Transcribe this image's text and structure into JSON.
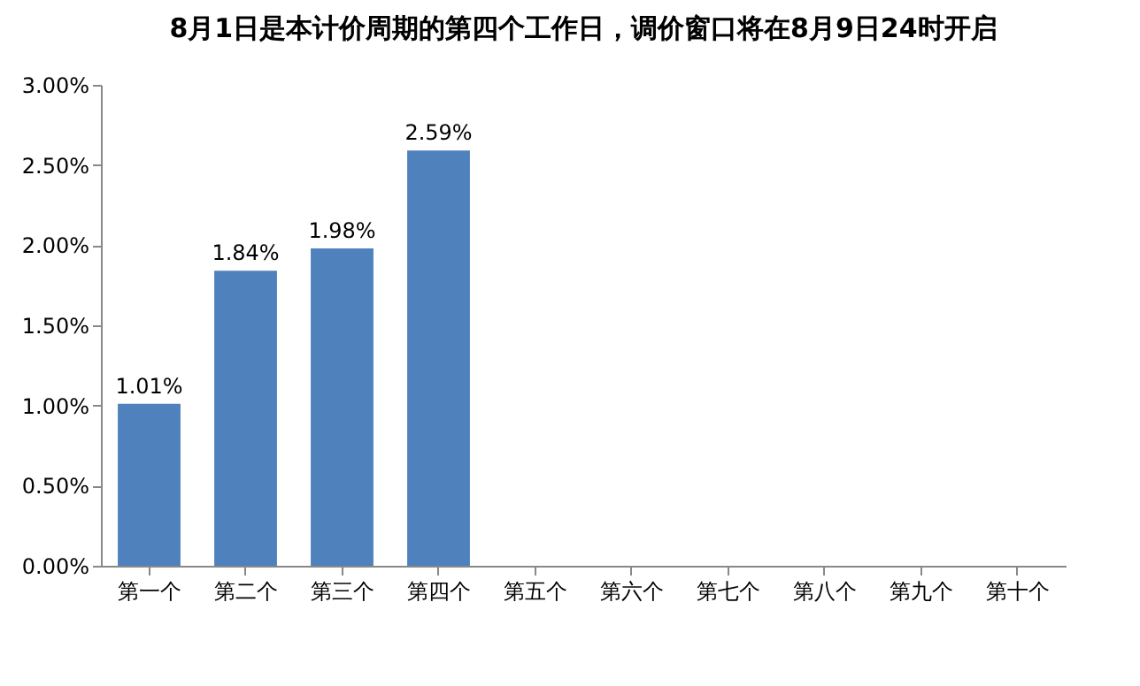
{
  "chart_data": {
    "type": "bar",
    "title": "8月1日是本计价周期的第四个工作日，调价窗口将在8月9日24时开启",
    "categories": [
      "第一个",
      "第二个",
      "第三个",
      "第四个",
      "第五个",
      "第六个",
      "第七个",
      "第八个",
      "第九个",
      "第十个"
    ],
    "values": [
      1.01,
      1.84,
      1.98,
      2.59,
      null,
      null,
      null,
      null,
      null,
      null
    ],
    "value_labels": [
      "1.01%",
      "1.84%",
      "1.98%",
      "2.59%",
      null,
      null,
      null,
      null,
      null,
      null
    ],
    "color": "#4f81bd",
    "ylim": [
      0,
      3
    ],
    "yticks": [
      {
        "value": 0,
        "label": "0.00%"
      },
      {
        "value": 0.5,
        "label": "0.50%"
      },
      {
        "value": 1,
        "label": "1.00%"
      },
      {
        "value": 1.5,
        "label": "1.50%"
      },
      {
        "value": 2,
        "label": "2.00%"
      },
      {
        "value": 2.5,
        "label": "2.50%"
      },
      {
        "value": 3,
        "label": "3.00%"
      }
    ],
    "grid": false
  }
}
